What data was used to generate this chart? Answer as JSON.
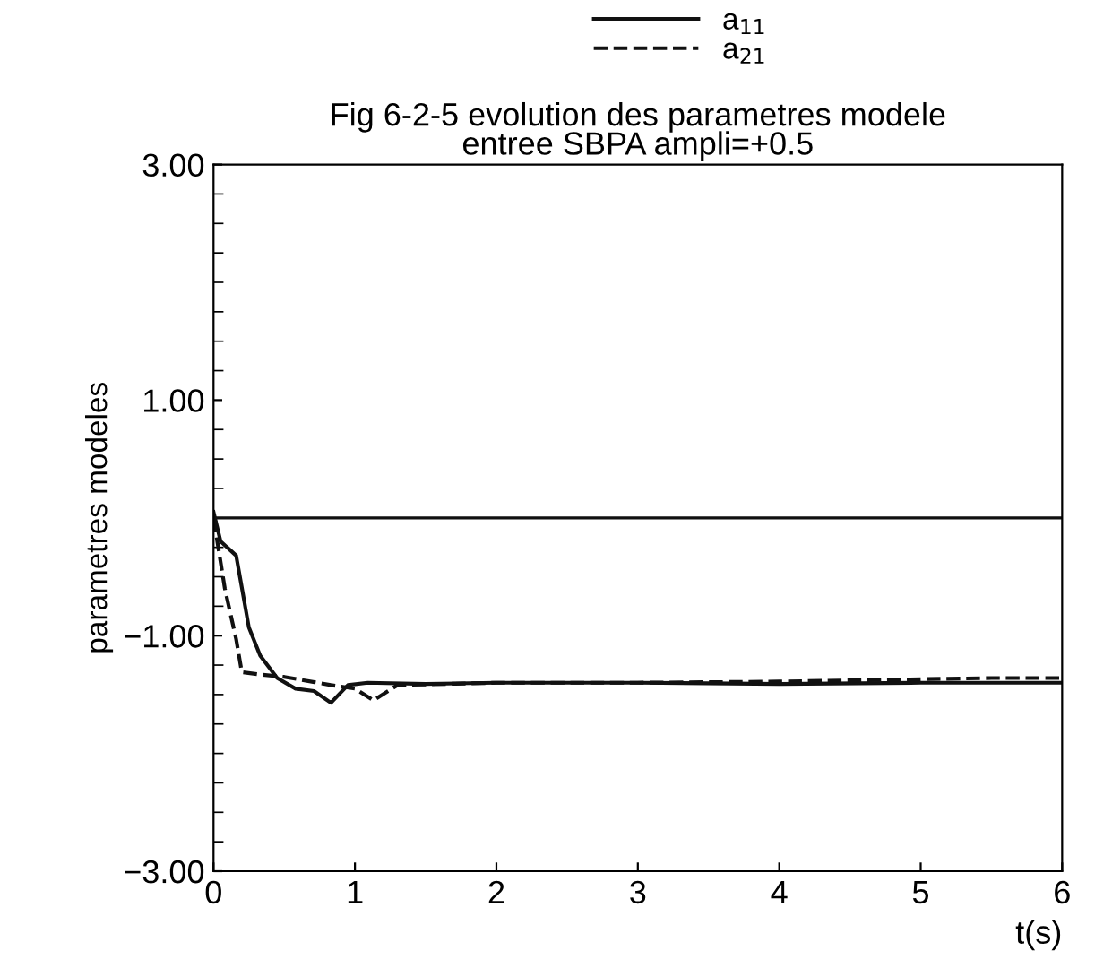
{
  "chart_data": {
    "type": "line",
    "title": "Fig 6-2-5 evolution des parametres modele\nentree SBPA ampli=+0.5",
    "xlabel": "t(s)",
    "ylabel": "parametres modeles",
    "series": [
      {
        "name": "a$_{11}$",
        "color": "#111111",
        "line_style": "solid",
        "x": [
          0,
          0.05,
          0.16,
          0.25,
          0.33,
          0.45,
          0.58,
          0.71,
          0.83,
          0.95,
          1.09,
          1.5,
          2,
          3,
          4,
          5,
          6
        ],
        "values": [
          0.05,
          -0.2,
          -0.32,
          -0.93,
          -1.17,
          -1.36,
          -1.45,
          -1.47,
          -1.57,
          -1.42,
          -1.4,
          -1.41,
          -1.4,
          -1.4,
          -1.41,
          -1.4,
          -1.4
        ]
      },
      {
        "name": "a$_{21}$",
        "color": "#111111",
        "line_style": "dashed",
        "x": [
          0,
          0.08,
          0.16,
          0.2,
          0.33,
          0.5,
          0.83,
          1.0,
          1.13,
          1.3,
          2,
          3,
          4,
          5,
          5.5,
          6
        ],
        "values": [
          0,
          -0.6,
          -1.03,
          -1.31,
          -1.33,
          -1.35,
          -1.42,
          -1.45,
          -1.55,
          -1.42,
          -1.4,
          -1.4,
          -1.39,
          -1.37,
          -1.36,
          -1.36
        ]
      }
    ],
    "xlim": [
      0,
      6
    ],
    "ylim": [
      -3,
      3
    ],
    "xticks": [
      0,
      1,
      2,
      3,
      4,
      5,
      6
    ],
    "yticks": [
      {
        "value": -3,
        "label": "−3.00"
      },
      {
        "value": -1,
        "label": "−1.00"
      },
      {
        "value": 1,
        "label": "1.00"
      },
      {
        "value": 3,
        "label": "3.00"
      }
    ],
    "ref_lines": [
      {
        "axis": "y",
        "value": 0,
        "color": "#111111"
      }
    ],
    "grid": false,
    "legend": "top"
  }
}
